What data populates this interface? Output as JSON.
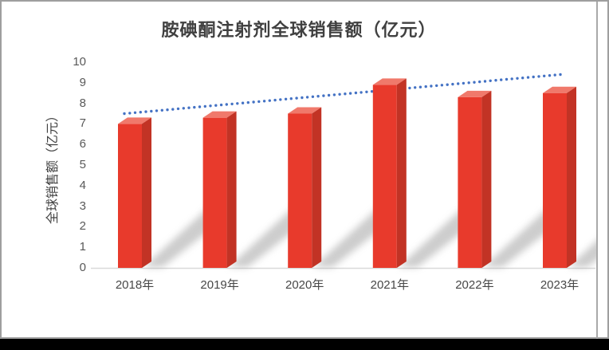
{
  "chart_data": {
    "type": "bar",
    "title": "胺碘酮注射剂全球销售额（亿元）",
    "categories": [
      "2018年",
      "2019年",
      "2020年",
      "2021年",
      "2022年",
      "2023年"
    ],
    "values": [
      7.0,
      7.3,
      7.5,
      8.9,
      8.3,
      8.5
    ],
    "xlabel": "",
    "ylabel": "全球销售额（亿元）",
    "ylim": [
      0,
      10
    ],
    "yticks": [
      0,
      1,
      2,
      3,
      4,
      5,
      6,
      7,
      8,
      9,
      10
    ],
    "grid": false,
    "legend": "none",
    "bar_style": "pseudo-3d-box-with-shadow",
    "trendline": {
      "type": "linear",
      "line_style": "dotted",
      "color": "#4472C4",
      "start_value": 7.5,
      "end_value": 9.4
    },
    "colors": {
      "bar_front": "#E83A2C",
      "bar_top": "#F0796B",
      "bar_side": "#C23325",
      "shadow": "#9a9a9a",
      "axis_line": "#D9D9D9",
      "tick_text": "#595959",
      "title_text": "#404040"
    }
  },
  "window": {
    "panel_background": "#FFFFFF",
    "frame_color": "#9E9E9E",
    "bottom_strip_color": "#000000"
  }
}
